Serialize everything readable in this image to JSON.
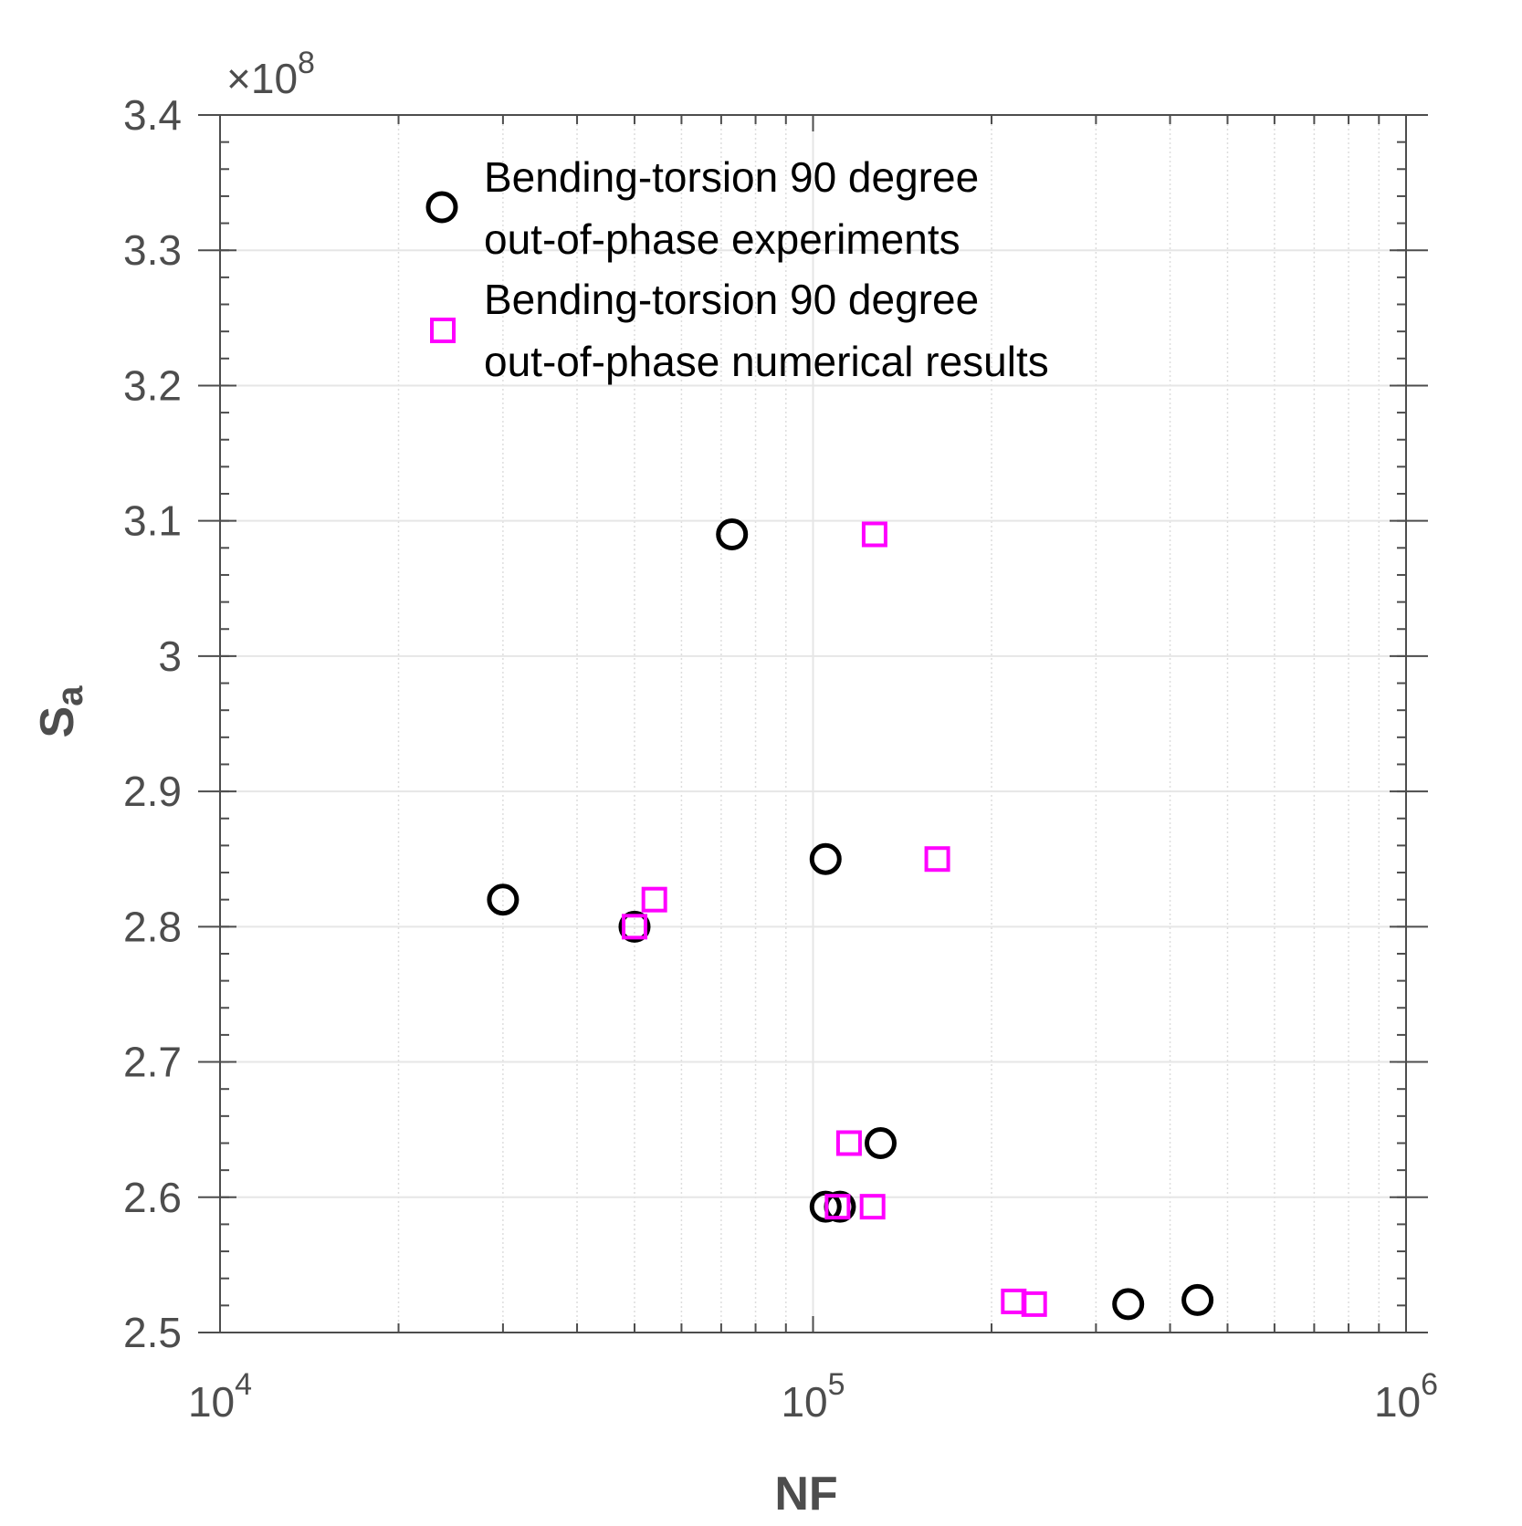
{
  "chart_data": {
    "type": "scatter",
    "xscale": "log",
    "xlabel": "NF",
    "ylabel_main": "S",
    "ylabel_sub": "a",
    "xlim": [
      10000,
      1000000
    ],
    "ylim": [
      250000000,
      340000000
    ],
    "y_multiplier_label": "×10",
    "y_multiplier_exp": "8",
    "x_ticks": [
      {
        "value": 10000,
        "base": "10",
        "exp": "4"
      },
      {
        "value": 100000,
        "base": "10",
        "exp": "5"
      },
      {
        "value": 1000000,
        "base": "10",
        "exp": "6"
      }
    ],
    "y_ticks": [
      {
        "value": 250000000,
        "label": "2.5"
      },
      {
        "value": 260000000,
        "label": "2.6"
      },
      {
        "value": 270000000,
        "label": "2.7"
      },
      {
        "value": 280000000,
        "label": "2.8"
      },
      {
        "value": 290000000,
        "label": "2.9"
      },
      {
        "value": 300000000,
        "label": "3"
      },
      {
        "value": 310000000,
        "label": "3.1"
      },
      {
        "value": 320000000,
        "label": "3.2"
      },
      {
        "value": 330000000,
        "label": "3.3"
      },
      {
        "value": 340000000,
        "label": "3.4"
      }
    ],
    "grid": true,
    "legend_position": "top-left",
    "series": [
      {
        "name_lines": [
          "Bending-torsion 90 degree",
          "out-of-phase experiments"
        ],
        "marker": "circle",
        "color": "#000000",
        "points": [
          {
            "x": 30000,
            "y": 282000000
          },
          {
            "x": 50000,
            "y": 280000000
          },
          {
            "x": 73000,
            "y": 309000000
          },
          {
            "x": 105000,
            "y": 285000000
          },
          {
            "x": 105000,
            "y": 259300000
          },
          {
            "x": 111000,
            "y": 259300000
          },
          {
            "x": 130000,
            "y": 264000000
          },
          {
            "x": 340000,
            "y": 252100000
          },
          {
            "x": 445000,
            "y": 252400000
          }
        ]
      },
      {
        "name_lines": [
          "Bending-torsion 90 degree",
          "out-of-phase numerical results"
        ],
        "marker": "square",
        "color": "#ff00ff",
        "points": [
          {
            "x": 50000,
            "y": 280000000
          },
          {
            "x": 54000,
            "y": 282000000
          },
          {
            "x": 110000,
            "y": 259300000
          },
          {
            "x": 115000,
            "y": 264000000
          },
          {
            "x": 126000,
            "y": 259300000
          },
          {
            "x": 127000,
            "y": 309000000
          },
          {
            "x": 162000,
            "y": 285000000
          },
          {
            "x": 218000,
            "y": 252300000
          },
          {
            "x": 236000,
            "y": 252100000
          }
        ]
      }
    ]
  }
}
